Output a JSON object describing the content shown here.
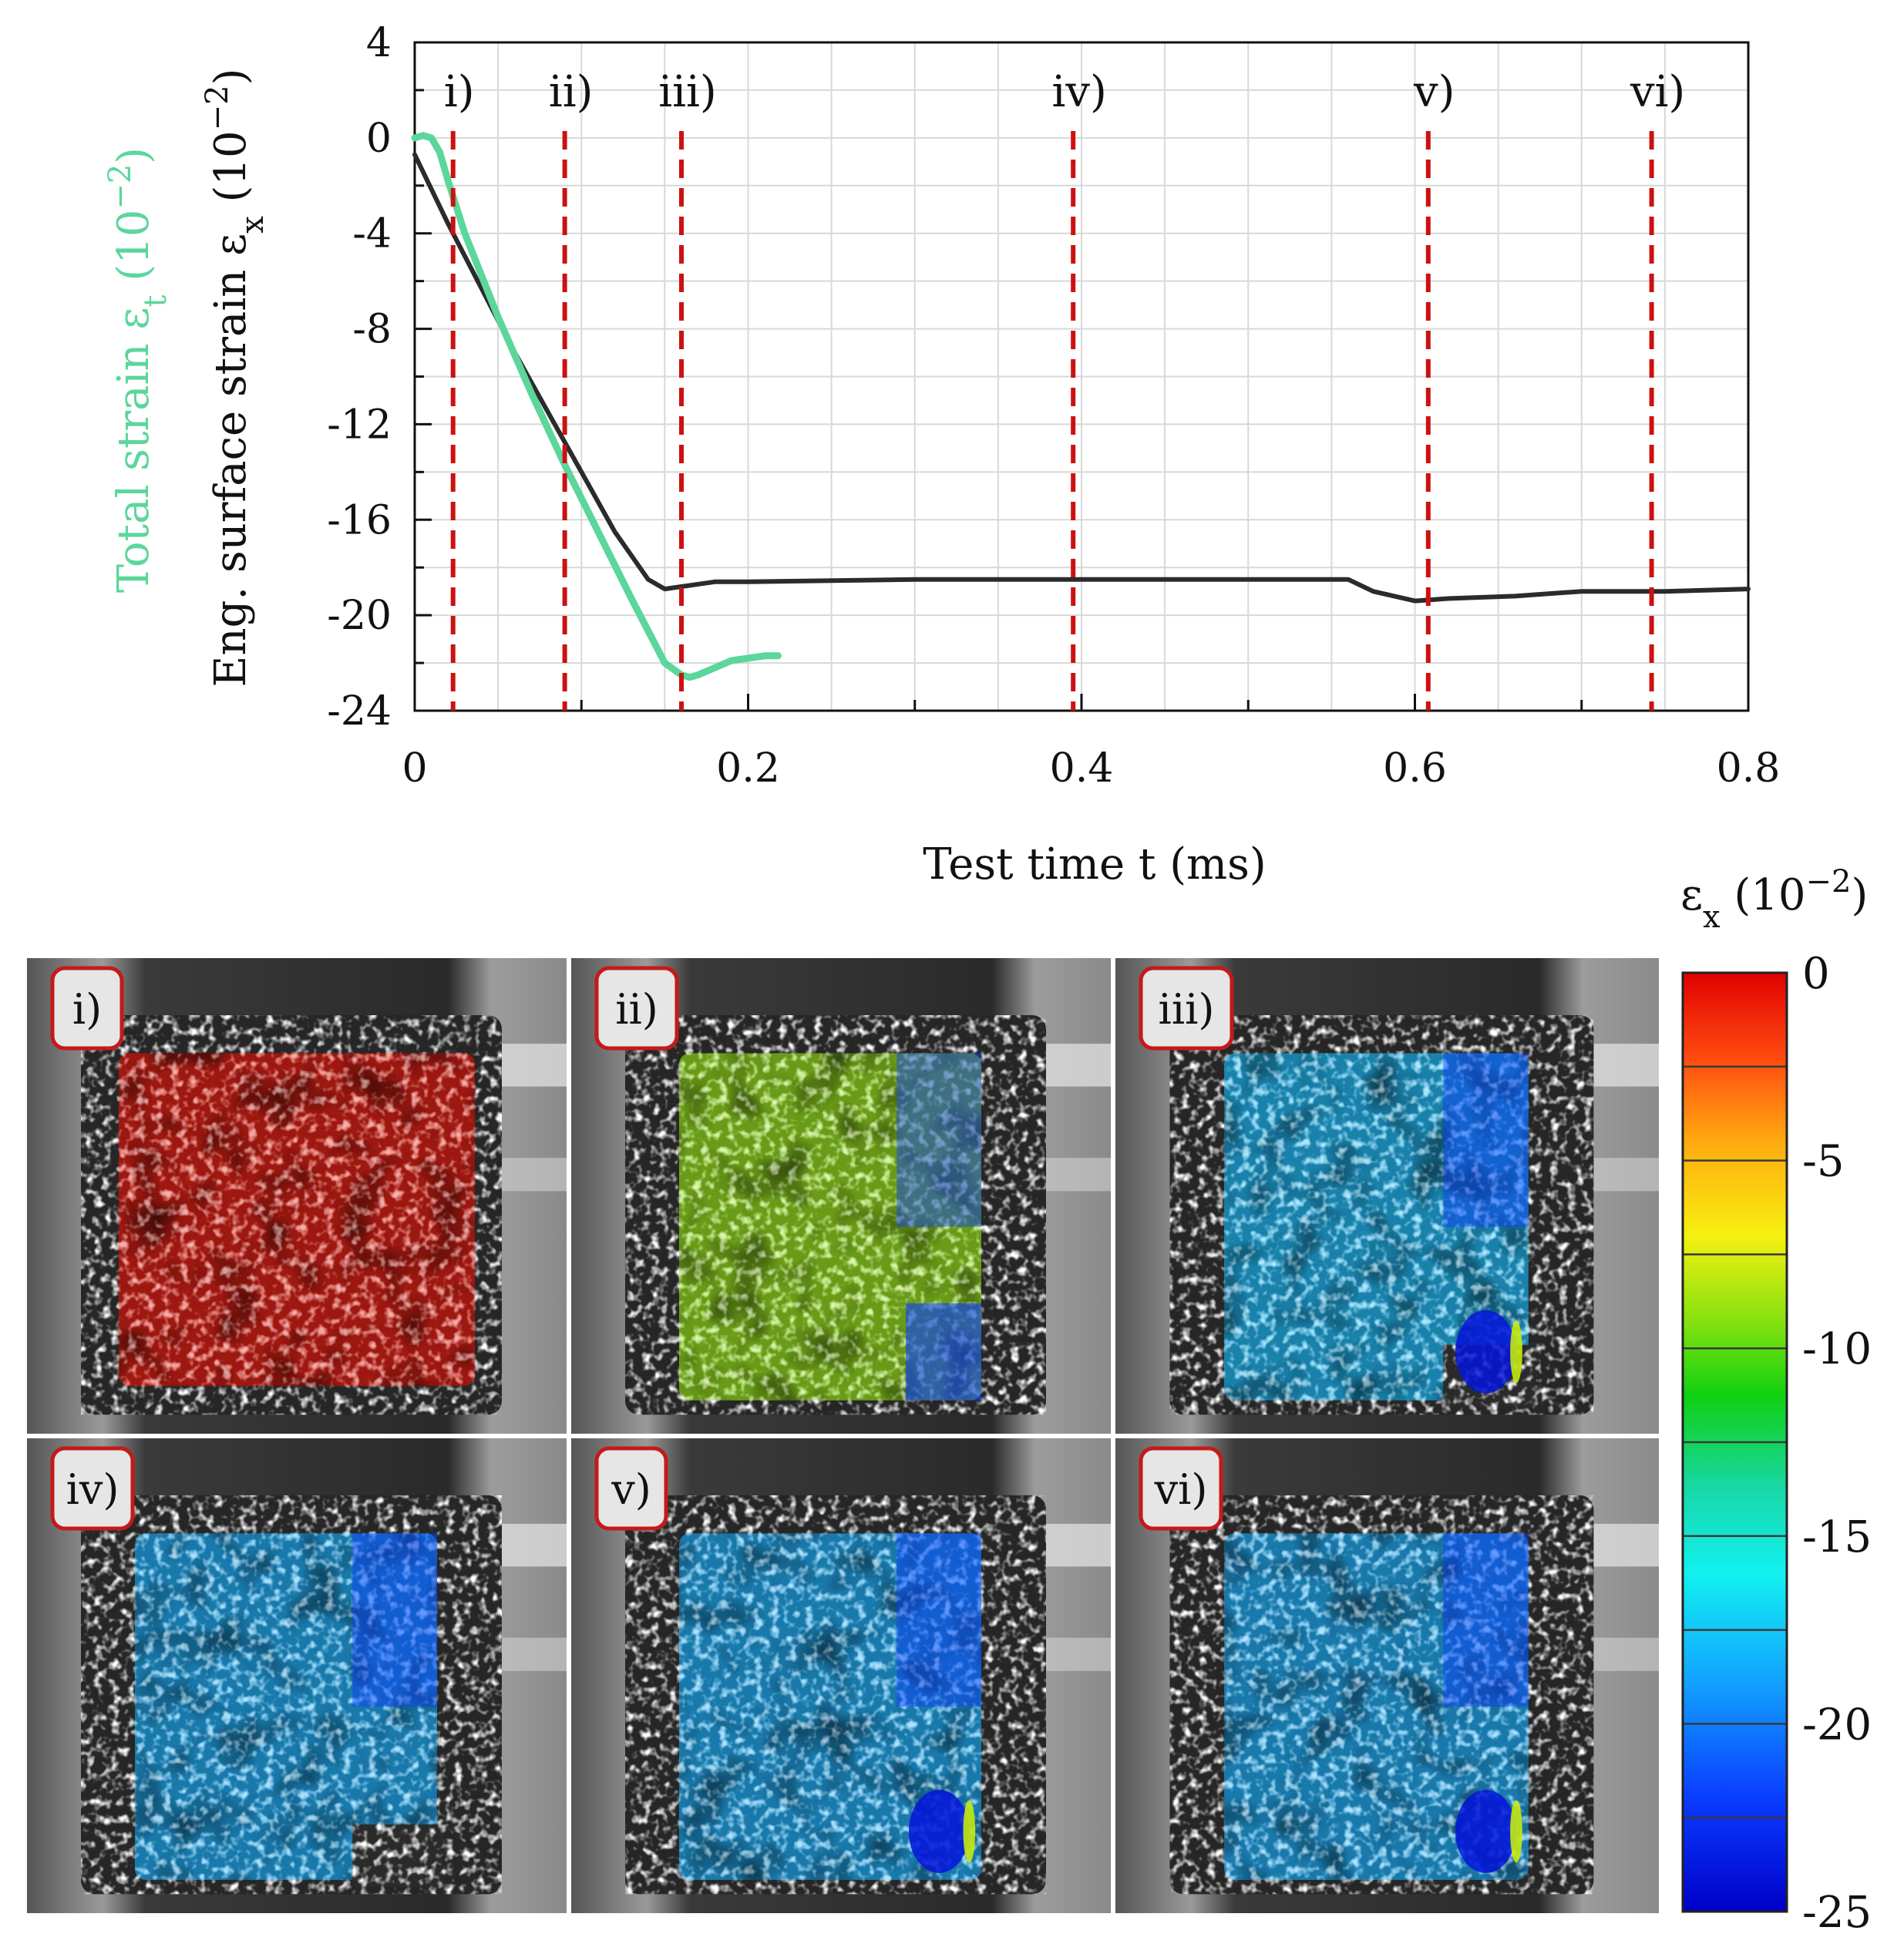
{
  "chart_data": {
    "type": "line",
    "xlabel": "Test time t (ms)",
    "ylabel_left_colored": "Total strain ε",
    "ylabel_left_colored_sub": "t",
    "ylabel_left_colored_unit": " (10",
    "ylabel_left_colored_exp": "−2",
    "ylabel_left_colored_close": ")",
    "ylabel_right": "Eng. surface strain ε",
    "ylabel_right_sub": "x",
    "ylabel_right_unit": " (10",
    "ylabel_right_exp": "−2",
    "ylabel_right_close": ")",
    "xlim": [
      0,
      0.8
    ],
    "ylim": [
      -24,
      4
    ],
    "xticks": [
      0,
      0.2,
      0.4,
      0.6,
      0.8
    ],
    "xtick_labels": [
      "0",
      "0.2",
      "0.4",
      "0.6",
      "0.8"
    ],
    "yticks": [
      4,
      0,
      -4,
      -8,
      -12,
      -16,
      -20,
      -24
    ],
    "ytick_labels": [
      "4",
      "0",
      "-4",
      "-8",
      "-12",
      "-16",
      "-20",
      "-24"
    ],
    "grid": true,
    "series": [
      {
        "name": "Eng. surface strain εx",
        "color": "#2b2b2b",
        "x": [
          0,
          0.02,
          0.04,
          0.06,
          0.08,
          0.1,
          0.12,
          0.14,
          0.15,
          0.16,
          0.18,
          0.2,
          0.3,
          0.4,
          0.5,
          0.56,
          0.575,
          0.6,
          0.62,
          0.66,
          0.7,
          0.75,
          0.8
        ],
        "y": [
          -0.7,
          -3.6,
          -6.3,
          -9.0,
          -11.5,
          -14.0,
          -16.5,
          -18.5,
          -18.9,
          -18.8,
          -18.6,
          -18.6,
          -18.5,
          -18.5,
          -18.5,
          -18.5,
          -19.0,
          -19.4,
          -19.3,
          -19.2,
          -19.0,
          -19.0,
          -18.9
        ]
      },
      {
        "name": "Total strain εt",
        "color": "#5cd69a",
        "x": [
          0,
          0.005,
          0.01,
          0.015,
          0.02,
          0.03,
          0.05,
          0.07,
          0.09,
          0.11,
          0.13,
          0.15,
          0.16,
          0.165,
          0.17,
          0.18,
          0.19,
          0.2,
          0.21,
          0.218
        ],
        "y": [
          0,
          0.1,
          0.0,
          -0.6,
          -1.8,
          -4.0,
          -7.5,
          -10.7,
          -13.7,
          -16.5,
          -19.3,
          -22.0,
          -22.5,
          -22.6,
          -22.5,
          -22.2,
          -21.9,
          -21.8,
          -21.7,
          -21.7
        ]
      }
    ],
    "markers": [
      {
        "label": "i)",
        "x": 0.023
      },
      {
        "label": "ii)",
        "x": 0.09
      },
      {
        "label": "iii)",
        "x": 0.16
      },
      {
        "label": "iv)",
        "x": 0.395
      },
      {
        "label": "v)",
        "x": 0.608
      },
      {
        "label": "vi)",
        "x": 0.742
      }
    ],
    "marker_color": "#cc1111",
    "colorbar": {
      "title": "ε",
      "title_sub": "x",
      "title_unit": " (10",
      "title_exp": "−2",
      "title_close": ")",
      "range": [
        -25,
        0
      ],
      "ticks": [
        0,
        -5,
        -10,
        -15,
        -20,
        -25
      ],
      "tick_labels": [
        "0",
        "-5",
        "-10",
        "-15",
        "-20",
        "-25"
      ],
      "bands": 10
    }
  },
  "panels": [
    {
      "label": "i)",
      "strain": -0.5,
      "notch": false,
      "hotspot": false
    },
    {
      "label": "ii)",
      "strain": -9.0,
      "notch": false,
      "hotspot": false
    },
    {
      "label": "iii)",
      "strain": -18.0,
      "notch": true,
      "hotspot": true
    },
    {
      "label": "iv)",
      "strain": -18.5,
      "notch": true,
      "hotspot": false
    },
    {
      "label": "v)",
      "strain": -18.5,
      "notch": false,
      "hotspot": true
    },
    {
      "label": "vi)",
      "strain": -18.5,
      "notch": false,
      "hotspot": true
    }
  ],
  "colors": {
    "green_label": "#5cd69a",
    "badge_border": "#c41a1a",
    "badge_fill": "#e6e6e6"
  }
}
